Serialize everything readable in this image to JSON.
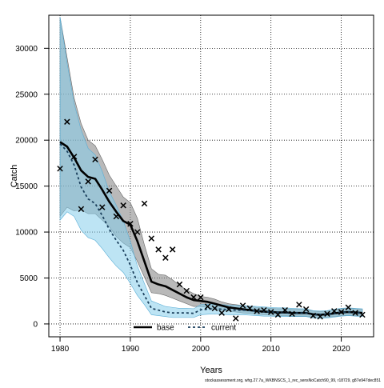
{
  "chart_data": {
    "type": "line",
    "xlabel": "Years",
    "ylabel": "Catch",
    "xlim": [
      1978.4,
      2024.6
    ],
    "ylim": [
      -1400,
      33600
    ],
    "xticks": [
      1980,
      1990,
      2000,
      2010,
      2020
    ],
    "yticks": [
      0,
      5000,
      10000,
      15000,
      20000,
      25000,
      30000
    ],
    "grid": true,
    "legend_position": "bottom",
    "footnote": "stockassessment.org, whg.27.7a_WKBNSCS_1_rec_sensNoCatch90_99, r18729, g87e947dec851",
    "colors": {
      "base_line": "#000000",
      "base_band": "#808080",
      "current_line": "#1a3f5c",
      "current_band": "#87ceeb",
      "observed": "#000000",
      "grid": "#000000"
    },
    "years": [
      1980,
      1981,
      1982,
      1983,
      1984,
      1985,
      1986,
      1987,
      1988,
      1989,
      1990,
      1991,
      1992,
      1993,
      1994,
      1995,
      1996,
      1997,
      1998,
      1999,
      2000,
      2001,
      2002,
      2003,
      2004,
      2005,
      2006,
      2007,
      2008,
      2009,
      2010,
      2011,
      2012,
      2013,
      2014,
      2015,
      2016,
      2017,
      2018,
      2019,
      2020,
      2021,
      2022,
      2023
    ],
    "observed_catch": [
      16900,
      22000,
      18200,
      12500,
      15500,
      17900,
      12700,
      14500,
      11700,
      12900,
      10900,
      10000,
      13100,
      9300,
      8100,
      7200,
      8100,
      4300,
      3600,
      2900,
      2900,
      1900,
      1700,
      1200,
      1600,
      600,
      2000,
      1700,
      1400,
      1500,
      1300,
      1000,
      1500,
      1100,
      2100,
      1600,
      900,
      800,
      1100,
      1400,
      1300,
      1800,
      1200,
      1000
    ],
    "series": [
      {
        "name": "base",
        "estimate": [
          19800,
          19300,
          18100,
          16700,
          16000,
          15800,
          14600,
          13300,
          12200,
          11200,
          10800,
          9000,
          6800,
          4600,
          4300,
          4100,
          3700,
          3300,
          2900,
          2600,
          2500,
          2400,
          2200,
          2000,
          1800,
          1700,
          1600,
          1500,
          1400,
          1350,
          1300,
          1250,
          1250,
          1200,
          1200,
          1200,
          1050,
          1000,
          1050,
          1150,
          1250,
          1300,
          1250,
          1200
        ],
        "upper": [
          33400,
          29000,
          24600,
          21800,
          20000,
          19400,
          17900,
          16200,
          15000,
          13800,
          13200,
          11500,
          8600,
          6000,
          5400,
          5300,
          4800,
          4200,
          3700,
          3300,
          3000,
          2900,
          2700,
          2400,
          2200,
          2100,
          2000,
          1900,
          1800,
          1750,
          1700,
          1650,
          1650,
          1600,
          1600,
          1600,
          1400,
          1350,
          1400,
          1550,
          1650,
          1700,
          1650,
          1600
        ],
        "lower": [
          11700,
          12700,
          12300,
          12400,
          12000,
          12000,
          11300,
          10600,
          9500,
          8800,
          8300,
          6800,
          5100,
          3400,
          3300,
          3100,
          2800,
          2500,
          2200,
          1900,
          1900,
          1800,
          1600,
          1500,
          1400,
          1300,
          1200,
          1150,
          1050,
          1000,
          950,
          900,
          900,
          850,
          850,
          850,
          750,
          700,
          750,
          800,
          900,
          950,
          900,
          850
        ]
      },
      {
        "name": "current",
        "estimate": [
          19600,
          18800,
          17300,
          14900,
          13600,
          13100,
          11800,
          10300,
          9100,
          8000,
          6400,
          4500,
          3100,
          1700,
          1500,
          1300,
          1200,
          1200,
          1200,
          1150,
          1550,
          1600,
          1650,
          1600,
          1550,
          1500,
          1500,
          1450,
          1400,
          1350,
          1300,
          1250,
          1250,
          1200,
          1200,
          1200,
          1050,
          1000,
          1050,
          1150,
          1250,
          1300,
          1250,
          1200
        ],
        "upper": [
          33400,
          28400,
          24000,
          21100,
          19100,
          18400,
          16600,
          14400,
          12900,
          11200,
          9000,
          6300,
          4400,
          2500,
          2200,
          1900,
          1800,
          1700,
          1700,
          1650,
          2100,
          2150,
          2150,
          2100,
          2050,
          2000,
          2000,
          1950,
          1900,
          1850,
          1800,
          1750,
          1750,
          1700,
          1650,
          1650,
          1450,
          1400,
          1450,
          1600,
          1700,
          1750,
          1700,
          1650
        ],
        "lower": [
          11300,
          12200,
          11700,
          10200,
          9400,
          9100,
          8200,
          7200,
          6300,
          5600,
          4400,
          3100,
          2100,
          1000,
          900,
          800,
          700,
          700,
          700,
          700,
          1000,
          1050,
          1100,
          1050,
          1000,
          1000,
          1000,
          950,
          900,
          850,
          850,
          800,
          800,
          800,
          800,
          800,
          650,
          600,
          650,
          750,
          850,
          900,
          850,
          800
        ]
      }
    ]
  }
}
